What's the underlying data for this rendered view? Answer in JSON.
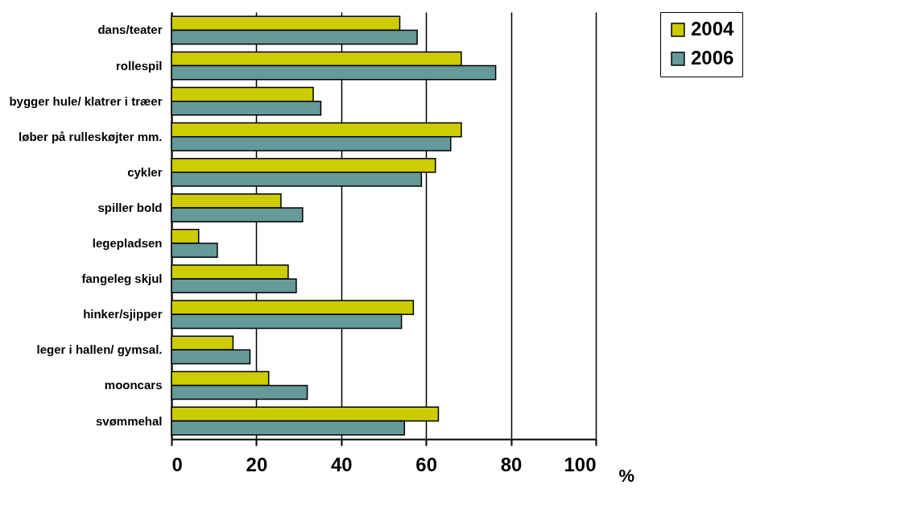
{
  "chart_data": {
    "type": "bar",
    "orientation": "horizontal",
    "xlabel": "%",
    "categories": [
      "dans/teater",
      "rollespil",
      "bygger hule/ klatrer i træer",
      "løber på rulleskøjter mm.",
      "cykler",
      "spiller bold",
      "legepladsen",
      "fangeleg skjul",
      "hinker/sjipper",
      "leger i hallen/ gymsal.",
      "mooncars",
      "svømmehal"
    ],
    "series": [
      {
        "name": "2004",
        "color": "#cccc00",
        "values": [
          53.8,
          68.3,
          33.4,
          68.3,
          62.2,
          25.8,
          6.4,
          27.5,
          57.0,
          14.5,
          22.9,
          62.9
        ]
      },
      {
        "name": "2006",
        "color": "#669999",
        "values": [
          57.9,
          76.4,
          35.2,
          65.8,
          58.9,
          30.9,
          10.8,
          29.4,
          54.2,
          18.5,
          32.0,
          54.9
        ]
      }
    ],
    "xlim": [
      0,
      100
    ],
    "xticks": [
      0,
      20,
      40,
      60,
      80,
      100
    ],
    "grid": "x",
    "legend": "right"
  }
}
